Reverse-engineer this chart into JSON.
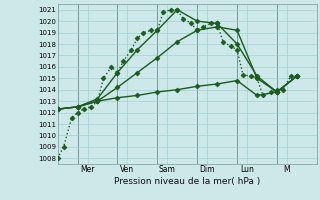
{
  "xlabel": "Pression niveau de la mer( hPa )",
  "bg_color": "#cce8e8",
  "grid_color": "#99cccc",
  "grid_color_major": "#88bbbb",
  "line_color": "#1a5c1a",
  "ylim": [
    1007.5,
    1021.5
  ],
  "yticks": [
    1008,
    1009,
    1010,
    1011,
    1012,
    1013,
    1014,
    1015,
    1016,
    1017,
    1018,
    1019,
    1020,
    1021
  ],
  "xlim": [
    0,
    13
  ],
  "day_labels": [
    "Mer",
    "Ven",
    "Sam",
    "Dim",
    "Lun",
    "M"
  ],
  "day_positions": [
    1.5,
    3.5,
    5.5,
    7.5,
    9.5,
    11.5
  ],
  "vline_positions": [
    1.0,
    3.0,
    5.0,
    7.0,
    9.0,
    11.0,
    13.0
  ],
  "series": [
    {
      "x": [
        0.0,
        0.3,
        0.7,
        1.0,
        1.3,
        1.7,
        2.0,
        2.3,
        2.7,
        3.0,
        3.3,
        3.7,
        4.0,
        4.3,
        4.7,
        5.0,
        5.3,
        5.7,
        6.0,
        6.3,
        6.7,
        7.0,
        7.3,
        7.7,
        8.0,
        8.3,
        8.7,
        9.0,
        9.3,
        9.7,
        10.0,
        10.3,
        10.7,
        11.0,
        11.3,
        11.7,
        12.0
      ],
      "y": [
        1008.0,
        1009.0,
        1011.5,
        1012.0,
        1012.3,
        1012.5,
        1013.0,
        1015.0,
        1016.0,
        1015.5,
        1016.5,
        1017.5,
        1018.5,
        1019.0,
        1019.2,
        1019.2,
        1020.8,
        1021.0,
        1021.0,
        1020.2,
        1019.8,
        1019.2,
        1019.5,
        1019.8,
        1019.8,
        1018.2,
        1017.8,
        1017.5,
        1015.3,
        1015.2,
        1015.0,
        1013.5,
        1013.8,
        1014.0,
        1014.0,
        1015.2,
        1015.2
      ],
      "linestyle": ":",
      "linewidth": 1.0,
      "marker": "D",
      "markersize": 2.5
    },
    {
      "x": [
        0.0,
        1.0,
        2.0,
        3.0,
        4.0,
        5.0,
        6.0,
        7.0,
        8.0,
        9.0,
        10.0,
        11.0,
        12.0
      ],
      "y": [
        1012.3,
        1012.5,
        1013.2,
        1015.5,
        1017.5,
        1019.2,
        1021.0,
        1020.0,
        1019.8,
        1018.0,
        1015.2,
        1013.8,
        1015.2
      ],
      "linestyle": "-",
      "linewidth": 1.0,
      "marker": "D",
      "markersize": 2.5
    },
    {
      "x": [
        0.0,
        1.0,
        2.0,
        3.0,
        4.0,
        5.0,
        6.0,
        7.0,
        8.0,
        9.0,
        10.0,
        11.0,
        12.0
      ],
      "y": [
        1012.3,
        1012.5,
        1013.0,
        1014.2,
        1015.5,
        1016.8,
        1018.2,
        1019.2,
        1019.5,
        1019.2,
        1015.0,
        1013.8,
        1015.2
      ],
      "linestyle": "-",
      "linewidth": 1.0,
      "marker": "D",
      "markersize": 2.5
    },
    {
      "x": [
        0.0,
        1.0,
        2.0,
        3.0,
        4.0,
        5.0,
        6.0,
        7.0,
        8.0,
        9.0,
        10.0,
        11.0,
        12.0
      ],
      "y": [
        1012.3,
        1012.5,
        1013.0,
        1013.3,
        1013.5,
        1013.8,
        1014.0,
        1014.3,
        1014.5,
        1014.8,
        1013.5,
        1013.8,
        1015.2
      ],
      "linestyle": "-",
      "linewidth": 1.0,
      "marker": "D",
      "markersize": 2.5
    }
  ]
}
